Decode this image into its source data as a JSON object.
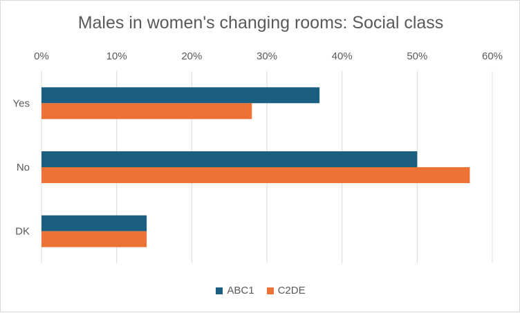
{
  "chart_data": {
    "type": "bar",
    "orientation": "horizontal",
    "title": "Males in women's changing rooms: Social class",
    "categories": [
      "Yes",
      "No",
      "DK"
    ],
    "series": [
      {
        "name": "ABC1",
        "color": "#1b5f80",
        "values": [
          37,
          50,
          14
        ]
      },
      {
        "name": "C2DE",
        "color": "#ec7335",
        "values": [
          28,
          57,
          14
        ]
      }
    ],
    "xlim": [
      0,
      60
    ],
    "x_ticks": [
      "0%",
      "10%",
      "20%",
      "30%",
      "40%",
      "50%",
      "60%"
    ],
    "x_axis_position": "top",
    "grid": true,
    "legend_position": "bottom"
  }
}
